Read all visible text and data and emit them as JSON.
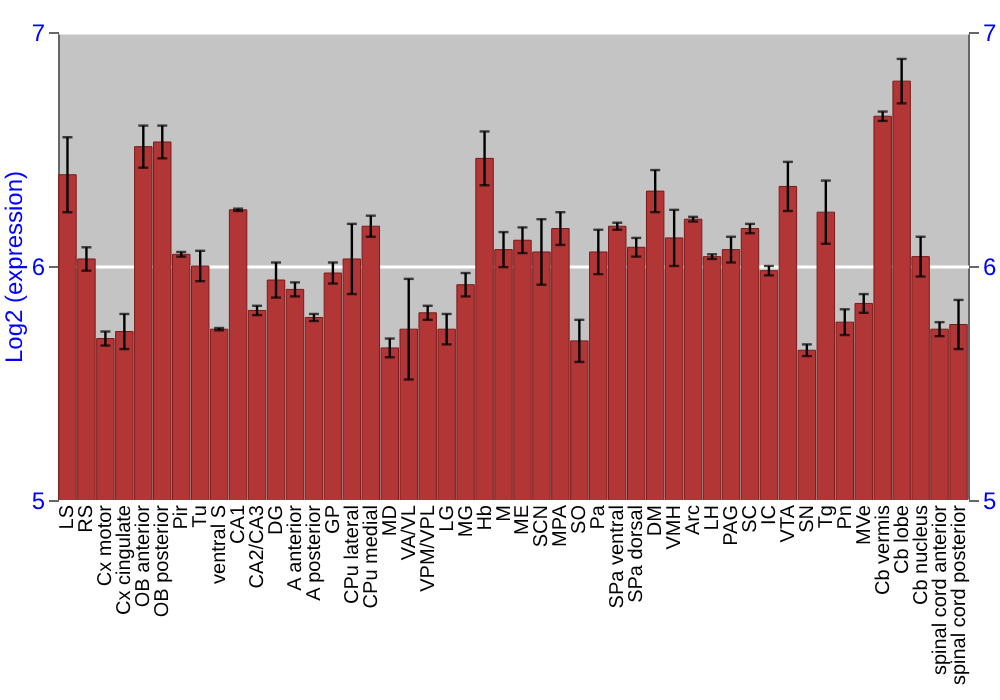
{
  "chart_data": {
    "type": "bar",
    "ylabel": "Log2 (expression)",
    "categories": [
      "LS",
      "RS",
      "Cx motor",
      "Cx cingulate",
      "OB anterior",
      "OB posterior",
      "Pir",
      "Tu",
      "ventral S",
      "CA1",
      "CA2/CA3",
      "DG",
      "A anterior",
      "A posterior",
      "GP",
      "CPu lateral",
      "CPu medial",
      "MD",
      "VA/VL",
      "VPM/VPL",
      "LG",
      "MG",
      "Hb",
      "M",
      "ME",
      "SCN",
      "MPA",
      "SO",
      "Pa",
      "SPa ventral",
      "SPa dorsal",
      "DM",
      "VMH",
      "Arc",
      "LH",
      "PAG",
      "SC",
      "IC",
      "VTA",
      "SN",
      "Tg",
      "Pn",
      "MVe",
      "Cb vermis",
      "Cb lobe",
      "Cb nucleus",
      "spinal cord anterior",
      "spinal cord posterior"
    ],
    "values": [
      6.39,
      6.03,
      5.69,
      5.72,
      6.51,
      6.53,
      6.05,
      6.0,
      5.73,
      6.24,
      5.81,
      5.94,
      5.9,
      5.78,
      5.97,
      6.03,
      6.17,
      5.65,
      5.73,
      5.8,
      5.73,
      5.92,
      6.46,
      6.07,
      6.11,
      6.06,
      6.16,
      5.68,
      6.06,
      6.17,
      6.08,
      6.32,
      6.12,
      6.2,
      6.04,
      6.07,
      6.16,
      5.98,
      6.34,
      5.64,
      6.23,
      5.76,
      5.84,
      6.64,
      6.79,
      6.04,
      5.73,
      5.75
    ],
    "errors": [
      0.16,
      0.05,
      0.03,
      0.075,
      0.09,
      0.07,
      0.01,
      0.065,
      0.005,
      0.005,
      0.02,
      0.075,
      0.03,
      0.015,
      0.045,
      0.15,
      0.045,
      0.04,
      0.215,
      0.03,
      0.065,
      0.05,
      0.115,
      0.075,
      0.055,
      0.14,
      0.07,
      0.09,
      0.095,
      0.015,
      0.04,
      0.09,
      0.12,
      0.01,
      0.01,
      0.055,
      0.02,
      0.02,
      0.105,
      0.025,
      0.135,
      0.055,
      0.04,
      0.02,
      0.095,
      0.085,
      0.03,
      0.105
    ],
    "color": "#b33636",
    "ylim": [
      5,
      7
    ],
    "yticks": [
      5,
      6,
      7
    ],
    "y2lim": [
      5,
      7
    ],
    "y2ticks": [
      5,
      6,
      7
    ],
    "grid": "y"
  }
}
